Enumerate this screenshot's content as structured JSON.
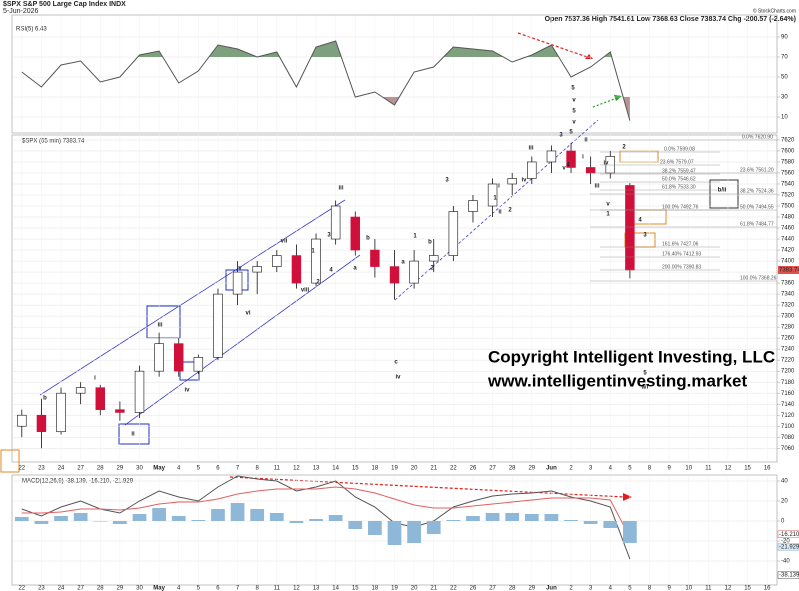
{
  "header": {
    "symbol": "$SPX S&P 500 Large Cap Index INDX",
    "date": "5-Jun-2026",
    "quote": "Open 7537.36 High 7541.61 Low 7368.63 Close 7383.74 Chg -200.57 (-2.64%)",
    "source": "© StockCharts.com"
  },
  "chart_data": [
    {
      "type": "line",
      "title": "RSI(5) 6.43",
      "ylim": [
        -6,
        112
      ],
      "yticks": [
        90,
        70,
        50,
        30,
        10
      ],
      "grid": true,
      "bands": {
        "upper": 70,
        "lower": 30,
        "upper_color": "#7fa07f",
        "lower_color": "#b99393"
      },
      "series": [
        {
          "name": "RSI(5)",
          "color": "#555555",
          "values": [
            55,
            40,
            62,
            66,
            45,
            50,
            72,
            76,
            44,
            56,
            82,
            78,
            70,
            75,
            40,
            80,
            86,
            30,
            35,
            22,
            55,
            60,
            80,
            78,
            76,
            65,
            72,
            82,
            50,
            60,
            75,
            6.43,
            null,
            null,
            null,
            null,
            null,
            null,
            null
          ]
        }
      ]
    },
    {
      "type": "candlestick",
      "title": "$SPX (65 min) 7383.74",
      "ylim": [
        7035,
        7629
      ],
      "yticks": [
        7060,
        7080,
        7100,
        7120,
        7140,
        7160,
        7180,
        7200,
        7220,
        7240,
        7260,
        7280,
        7300,
        7320,
        7340,
        7360,
        7380,
        7400,
        7420,
        7440,
        7460,
        7480,
        7500,
        7520,
        7540,
        7560,
        7580,
        7600,
        7620
      ],
      "grid": true,
      "categories": [
        "22",
        "23",
        "24",
        "27",
        "28",
        "29",
        "30",
        "May",
        "4",
        "5",
        "6",
        "7",
        "8",
        "11",
        "12",
        "13",
        "14",
        "15",
        "18",
        "19",
        "20",
        "21",
        "22",
        "26",
        "27",
        "28",
        "29",
        "Jun",
        "2",
        "3",
        "4",
        "5",
        "8",
        "9",
        "10",
        "11",
        "12",
        "15",
        "16"
      ],
      "up_color": "#ffffff",
      "down_color": "#d0103a",
      "open": [
        7100,
        7120,
        7090,
        7160,
        7170,
        7130,
        7125,
        7200,
        7250,
        7200,
        7225,
        7340,
        7380,
        7390,
        7410,
        7360,
        7440,
        7480,
        7420,
        7390,
        7360,
        7400,
        7410,
        7490,
        7500,
        7540,
        7550,
        7580,
        7600,
        7570,
        7560,
        7537.36,
        null,
        null,
        null,
        null,
        null,
        null,
        null
      ],
      "high": [
        7130,
        7150,
        7170,
        7180,
        7175,
        7145,
        7210,
        7270,
        7260,
        7230,
        7350,
        7400,
        7400,
        7420,
        7430,
        7450,
        7510,
        7490,
        7440,
        7420,
        7420,
        7440,
        7500,
        7520,
        7550,
        7560,
        7590,
        7610,
        7615,
        7590,
        7600,
        7541.61,
        null,
        null,
        null,
        null,
        null,
        null,
        null
      ],
      "low": [
        7080,
        7060,
        7085,
        7140,
        7120,
        7110,
        7115,
        7190,
        7190,
        7195,
        7220,
        7320,
        7340,
        7380,
        7350,
        7355,
        7430,
        7410,
        7370,
        7330,
        7350,
        7380,
        7400,
        7470,
        7480,
        7520,
        7540,
        7560,
        7560,
        7540,
        7550,
        7368.63,
        null,
        null,
        null,
        null,
        null,
        null,
        null
      ],
      "close": [
        7120,
        7090,
        7160,
        7170,
        7130,
        7125,
        7200,
        7250,
        7200,
        7225,
        7340,
        7380,
        7390,
        7410,
        7360,
        7440,
        7500,
        7420,
        7390,
        7360,
        7400,
        7410,
        7490,
        7510,
        7540,
        7550,
        7580,
        7600,
        7570,
        7560,
        7590,
        7383.74,
        null,
        null,
        null,
        null,
        null,
        null,
        null
      ],
      "annotations": [
        {
          "text": "b",
          "color": "#1f2fbf"
        },
        {
          "text": "i",
          "color": "#1f2fbf"
        },
        {
          "text": "ii",
          "color": "#1f2fbf"
        },
        {
          "text": "iii",
          "color": "#1f2fbf"
        },
        {
          "text": "iv",
          "color": "#1f2fbf"
        },
        {
          "text": "v",
          "color": "#1f2fbf"
        },
        {
          "text": "vi",
          "color": "#1f2fbf"
        },
        {
          "text": "vii",
          "color": "#1f2fbf"
        },
        {
          "text": "viii",
          "color": "#1f2fbf"
        },
        {
          "text": "iii",
          "color": "#666666"
        },
        {
          "text": "1",
          "color": "#d020c8"
        },
        {
          "text": "2",
          "color": "#d020c8"
        },
        {
          "text": "3",
          "color": "#d020c8"
        },
        {
          "text": "4",
          "color": "#d020c8"
        },
        {
          "text": "a",
          "color": "#e08a1e"
        },
        {
          "text": "b",
          "color": "#e08a1e"
        },
        {
          "text": "c",
          "color": "#e08a1e"
        },
        {
          "text": "iv",
          "color": "#666666"
        },
        {
          "text": "a",
          "color": "#1f2fbf"
        },
        {
          "text": "b",
          "color": "#1f2fbf"
        },
        {
          "text": "1",
          "color": "#e08a1e"
        },
        {
          "text": "2",
          "color": "#e08a1e"
        },
        {
          "text": "3",
          "color": "#e08a1e"
        },
        {
          "text": "i",
          "color": "#1f2fbf"
        },
        {
          "text": "ii",
          "color": "#1f2fbf"
        },
        {
          "text": "iii",
          "color": "#1f2fbf"
        },
        {
          "text": "iv",
          "color": "#1f2fbf"
        },
        {
          "text": "v",
          "color": "#1f2fbf"
        },
        {
          "text": "1",
          "color": "#d020c8"
        },
        {
          "text": "2",
          "color": "#d020c8"
        },
        {
          "text": "3",
          "color": "#d020c8"
        },
        {
          "text": "4",
          "color": "#d020c8"
        },
        {
          "text": "5",
          "color": "#d020c8"
        },
        {
          "text": "i",
          "color": "#222222"
        },
        {
          "text": "ii",
          "color": "#1f2fbf"
        },
        {
          "text": "iii",
          "color": "#1f2fbf"
        },
        {
          "text": "iv",
          "color": "#1f2fbf"
        },
        {
          "text": "v",
          "color": "#1f2fbf"
        },
        {
          "text": "1",
          "color": "#e08a1e"
        },
        {
          "text": "2",
          "color": "#e08a1e"
        },
        {
          "text": "3",
          "color": "#e08a1e"
        },
        {
          "text": "4",
          "color": "#e08a1e"
        },
        {
          "text": "5",
          "color": "#e08a1e"
        },
        {
          "text": "a/i",
          "color": "#666666"
        },
        {
          "text": "5",
          "color": "#1e8a1e"
        },
        {
          "text": "v",
          "color": "#666666"
        },
        {
          "text": "5",
          "color": "#e08a1e"
        },
        {
          "text": "v",
          "color": "#1f2fbf"
        },
        {
          "text": "b/ii",
          "color": "#333333"
        }
      ],
      "fib_labels": [
        "0.0% 7620.90",
        "0.0% 7599.08",
        "23.6% 7579.07",
        "23.6% 7561.20",
        "38.2% 7559.47",
        "50.0% 7546.62",
        "61.8% 7533.30",
        "38.2% 7524.36",
        "100.0% 7492.76",
        "50.0% 7494.55",
        "61.8% 7484.77",
        "161.6% 7427.06",
        "176.40% 7412.93",
        "200.00% 7390.83",
        "100.0% 7368.26"
      ],
      "copyright": [
        "Copyright Intelligent Investing, LLC",
        "www.intelligentinvesting.market"
      ]
    },
    {
      "type": "line",
      "title": "MACD(12,26,9) -38.139, -16.210, -21.929",
      "ylim": [
        -64,
        46
      ],
      "yticks": [
        40,
        20,
        0,
        -20,
        -40
      ],
      "grid": true,
      "last_labels": [
        "-16.210",
        "-21.929",
        "-38.139"
      ],
      "series": [
        {
          "name": "MACD",
          "color": "#555555",
          "style": "line",
          "values": [
            12,
            5,
            14,
            20,
            12,
            8,
            20,
            30,
            24,
            20,
            34,
            45,
            42,
            40,
            30,
            34,
            40,
            24,
            14,
            -2,
            -6,
            0,
            14,
            20,
            25,
            27,
            28,
            30,
            24,
            20,
            14,
            -38.139,
            null,
            null,
            null,
            null,
            null,
            null,
            null
          ]
        },
        {
          "name": "Signal",
          "color": "#e06060",
          "style": "line",
          "values": [
            8,
            8,
            9,
            12,
            12,
            11,
            13,
            17,
            19,
            19,
            22,
            27,
            30,
            32,
            32,
            32,
            34,
            32,
            28,
            22,
            16,
            13,
            13,
            15,
            17,
            19,
            21,
            23,
            23,
            23,
            21,
            -16.21,
            null,
            null,
            null,
            null,
            null,
            null,
            null
          ]
        },
        {
          "name": "Histogram",
          "color": "#8fb8d8",
          "style": "bar",
          "values": [
            4,
            -3,
            5,
            8,
            0,
            -3,
            7,
            13,
            5,
            1,
            12,
            18,
            12,
            8,
            -2,
            2,
            6,
            -8,
            -14,
            -24,
            -22,
            -13,
            1,
            5,
            8,
            8,
            7,
            7,
            1,
            -3,
            -7,
            -21.929,
            null,
            null,
            null,
            null,
            null,
            null,
            null
          ]
        }
      ]
    }
  ]
}
